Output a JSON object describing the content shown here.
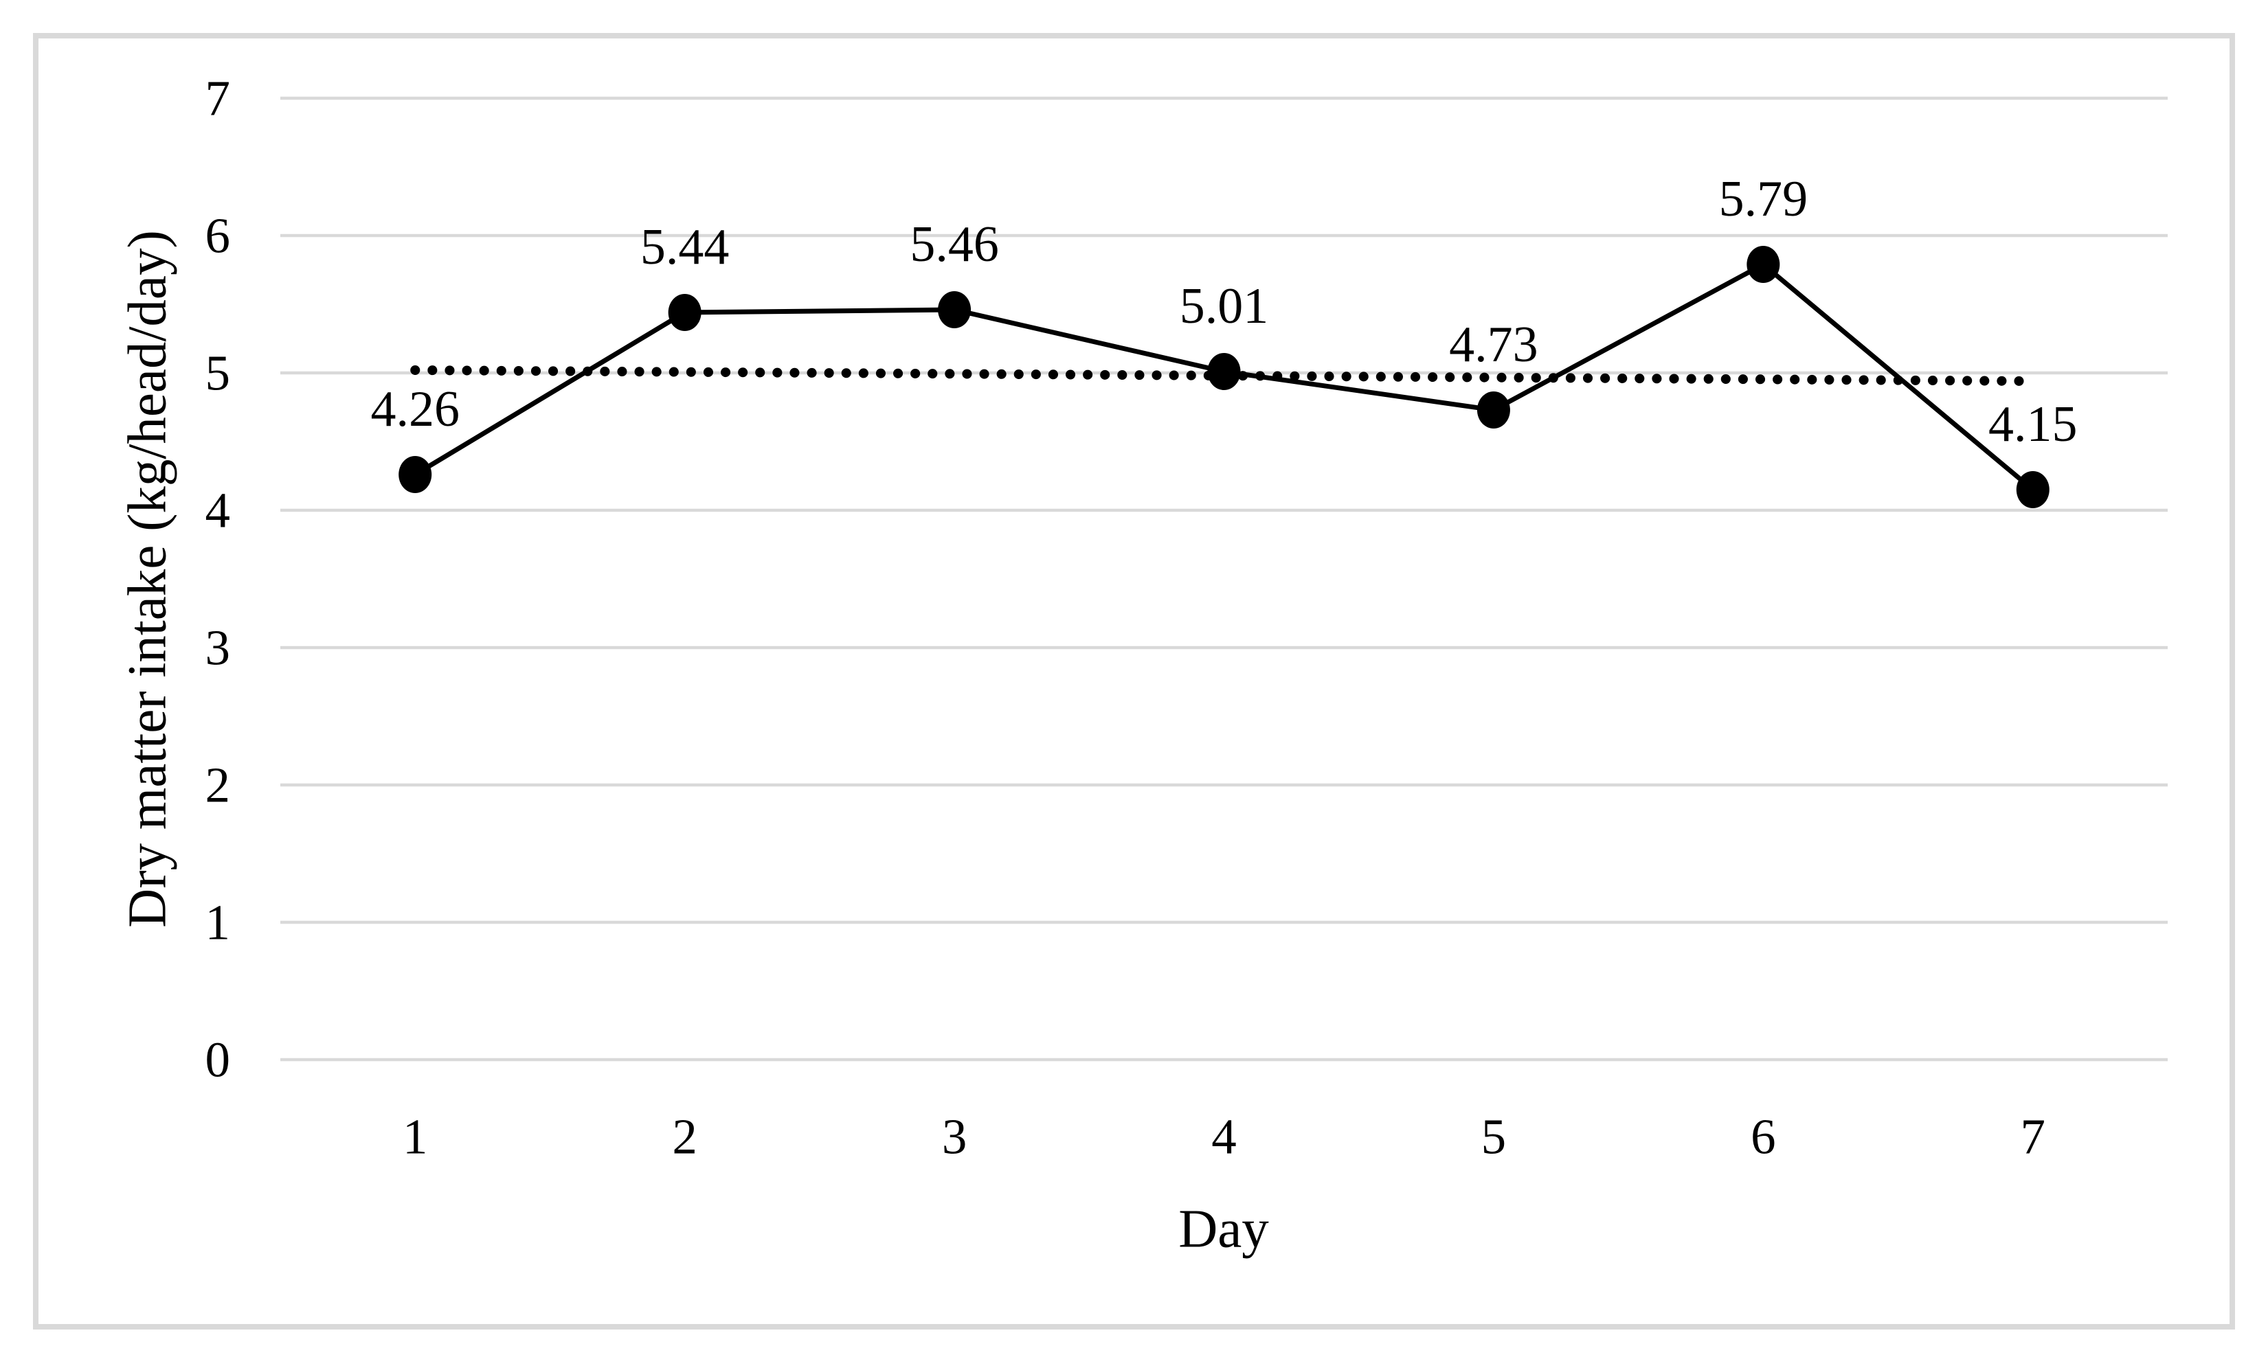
{
  "figure": {
    "background": "#ffffff",
    "border_color": "#d9d9d9",
    "text_color": "#000000"
  },
  "chart_data": {
    "type": "line",
    "title": "",
    "xlabel": "Day",
    "ylabel": "Dry matter intake (kg/head/day)",
    "categories": [
      "1",
      "2",
      "3",
      "4",
      "5",
      "6",
      "7"
    ],
    "series": [
      {
        "name": "Dry matter intake",
        "values": [
          4.26,
          5.44,
          5.46,
          5.01,
          4.73,
          5.79,
          4.15
        ],
        "color": "#000000",
        "marker": "filled-circle",
        "line_style": "solid"
      }
    ],
    "data_labels": [
      "4.26",
      "5.44",
      "5.46",
      "5.01",
      "4.73",
      "5.79",
      "4.15"
    ],
    "data_label_position": "above",
    "trendline": {
      "style": "round-dot",
      "color": "#000000",
      "start_value": 5.02,
      "end_value": 4.94
    },
    "ylim": [
      0,
      7
    ],
    "ytick_labels": [
      "0",
      "1",
      "2",
      "3",
      "4",
      "5",
      "6",
      "7"
    ],
    "xtick_labels": [
      "1",
      "2",
      "3",
      "4",
      "5",
      "6",
      "7"
    ],
    "grid": "horizontal",
    "gridline_color": "#d9d9d9",
    "legend": "none"
  }
}
